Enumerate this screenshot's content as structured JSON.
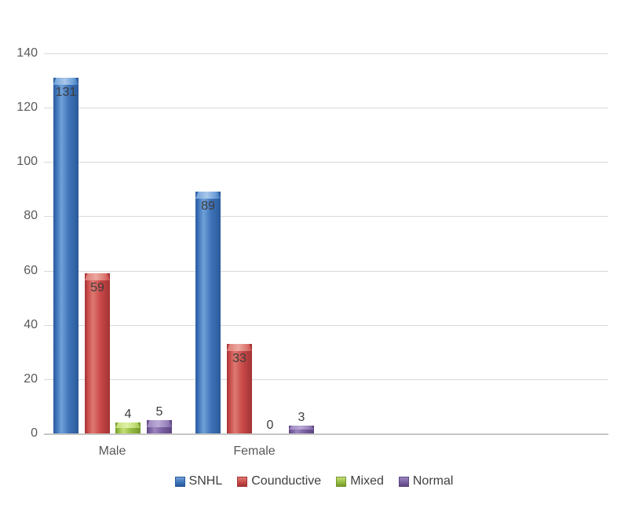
{
  "chart_data": {
    "type": "bar",
    "title": "",
    "xlabel": "",
    "ylabel": "",
    "categories": [
      "Male",
      "Female"
    ],
    "series": [
      {
        "name": "SNHL",
        "values": [
          131,
          89
        ],
        "color": "#3e73b8",
        "color_dark": "#2b5a9b",
        "color_light": "#6fa0d8",
        "color_lighter": "#a9c7eb"
      },
      {
        "name": "Counductive",
        "values": [
          59,
          33
        ],
        "color": "#c94948",
        "color_dark": "#a23335",
        "color_light": "#dd7a72",
        "color_lighter": "#eba89f"
      },
      {
        "name": "Mixed",
        "values": [
          4,
          0
        ],
        "color": "#96bd42",
        "color_dark": "#74962c",
        "color_light": "#c4de77",
        "color_lighter": "#def0a6"
      },
      {
        "name": "Normal",
        "values": [
          5,
          3
        ],
        "color": "#7a5fa2",
        "color_dark": "#5d4580",
        "color_light": "#9b85be",
        "color_lighter": "#bcaad8"
      }
    ],
    "ylim": [
      0,
      140
    ],
    "ytick_step": 20,
    "yticks": [
      0,
      20,
      40,
      60,
      80,
      100,
      120,
      140
    ],
    "grid": true,
    "legend_position": "bottom",
    "data_labels_shown": true
  }
}
